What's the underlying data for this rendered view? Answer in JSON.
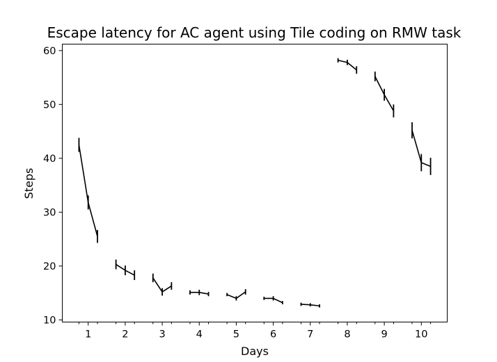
{
  "chart_data": {
    "type": "line",
    "title": "Escape latency for AC agent using Tile coding on RMW task",
    "xlabel": "Days",
    "ylabel": "Steps",
    "xlim": [
      0.3,
      10.7
    ],
    "ylim": [
      9.6,
      61.2
    ],
    "x_ticks": [
      1,
      2,
      3,
      4,
      5,
      6,
      7,
      8,
      9,
      10
    ],
    "y_ticks": [
      10,
      20,
      30,
      40,
      50,
      60
    ],
    "minor_x_ticks": [
      0.75,
      1.25,
      1.75,
      2.25,
      2.75,
      3.25,
      3.75,
      4.25,
      4.75,
      5.25,
      5.75,
      6.25,
      6.75,
      7.25,
      7.75,
      8.25,
      8.75,
      9.25,
      9.75,
      10.25
    ],
    "grid": false,
    "series": [
      {
        "color": "#000000",
        "days": [
          {
            "x": [
              0.75,
              1.0,
              1.25
            ],
            "y": [
              42.5,
              31.8,
              25.5
            ],
            "err": [
              1.3,
              1.3,
              1.2
            ]
          },
          {
            "x": [
              1.75,
              2.0,
              2.25
            ],
            "y": [
              20.3,
              19.2,
              18.3
            ],
            "err": [
              0.9,
              0.9,
              0.9
            ]
          },
          {
            "x": [
              2.75,
              3.0,
              3.25
            ],
            "y": [
              17.8,
              15.2,
              16.3
            ],
            "err": [
              0.8,
              0.7,
              0.7
            ]
          },
          {
            "x": [
              3.75,
              4.0,
              4.25
            ],
            "y": [
              15.1,
              15.1,
              14.8
            ],
            "err": [
              0.4,
              0.5,
              0.4
            ]
          },
          {
            "x": [
              4.75,
              5.0,
              5.25
            ],
            "y": [
              14.7,
              14.0,
              15.2
            ],
            "err": [
              0.3,
              0.4,
              0.5
            ]
          },
          {
            "x": [
              5.75,
              6.0,
              6.25
            ],
            "y": [
              14.0,
              14.0,
              13.2
            ],
            "err": [
              0.3,
              0.4,
              0.3
            ]
          },
          {
            "x": [
              6.75,
              7.0,
              7.25
            ],
            "y": [
              12.9,
              12.8,
              12.6
            ],
            "err": [
              0.3,
              0.3,
              0.3
            ]
          },
          {
            "x": [
              7.75,
              8.0,
              8.25
            ],
            "y": [
              58.2,
              57.8,
              56.4
            ],
            "err": [
              0.4,
              0.5,
              0.7
            ]
          },
          {
            "x": [
              8.75,
              9.0,
              9.25
            ],
            "y": [
              55.2,
              51.8,
              48.8
            ],
            "err": [
              0.9,
              1.1,
              1.2
            ]
          },
          {
            "x": [
              9.75,
              10.0,
              10.25
            ],
            "y": [
              45.2,
              39.2,
              38.5
            ],
            "err": [
              1.5,
              1.6,
              1.6
            ]
          }
        ]
      }
    ]
  }
}
